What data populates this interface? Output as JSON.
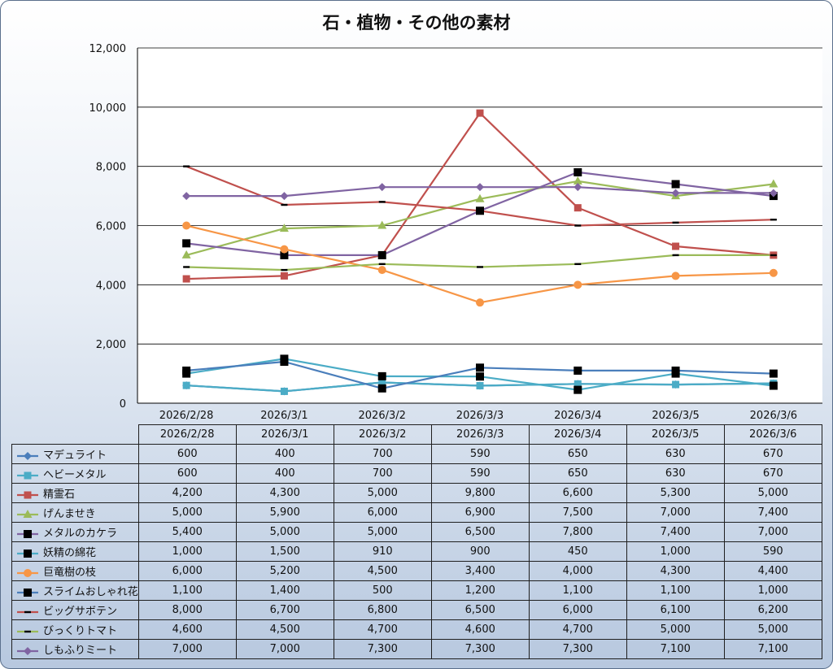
{
  "chart_data": {
    "type": "line",
    "title": "石・植物・その他の素材",
    "categories": [
      "2026/2/28",
      "2026/3/1",
      "2026/3/2",
      "2026/3/3",
      "2026/3/4",
      "2026/3/5",
      "2026/3/6"
    ],
    "ylim": [
      0,
      12000
    ],
    "yticks": [
      "0",
      "2,000",
      "4,000",
      "6,000",
      "8,000",
      "10,000",
      "12,000"
    ],
    "grid": true,
    "legend": "data-table",
    "series": [
      {
        "name": "マデュライト",
        "color": "#4a7ebb",
        "marker": "diamond",
        "values": [
          600,
          400,
          700,
          590,
          650,
          630,
          670
        ],
        "labels": [
          "600",
          "400",
          "700",
          "590",
          "650",
          "630",
          "670"
        ]
      },
      {
        "name": "ヘビーメタル",
        "color": "#4bacc6",
        "marker": "square",
        "values": [
          600,
          400,
          700,
          590,
          650,
          630,
          670
        ],
        "labels": [
          "600",
          "400",
          "700",
          "590",
          "650",
          "630",
          "670"
        ]
      },
      {
        "name": "精霊石",
        "color": "#c0504d",
        "marker": "square",
        "values": [
          4200,
          4300,
          5000,
          9800,
          6600,
          5300,
          5000
        ],
        "labels": [
          "4,200",
          "4,300",
          "5,000",
          "9,800",
          "6,600",
          "5,300",
          "5,000"
        ]
      },
      {
        "name": "げんませき",
        "color": "#9bbb59",
        "marker": "triangle",
        "values": [
          5000,
          5900,
          6000,
          6900,
          7500,
          7000,
          7400
        ],
        "labels": [
          "5,000",
          "5,900",
          "6,000",
          "6,900",
          "7,500",
          "7,000",
          "7,400"
        ]
      },
      {
        "name": "メタルのカケラ",
        "color": "#8064a2",
        "marker": "square-black",
        "values": [
          5400,
          5000,
          5000,
          6500,
          7800,
          7400,
          7000
        ],
        "labels": [
          "5,400",
          "5,000",
          "5,000",
          "6,500",
          "7,800",
          "7,400",
          "7,000"
        ]
      },
      {
        "name": "妖精の綿花",
        "color": "#4bacc6",
        "marker": "square-black",
        "values": [
          1000,
          1500,
          910,
          900,
          450,
          1000,
          590
        ],
        "labels": [
          "1,000",
          "1,500",
          "910",
          "900",
          "450",
          "1,000",
          "590"
        ]
      },
      {
        "name": "巨竜樹の枝",
        "color": "#f79646",
        "marker": "circle",
        "values": [
          6000,
          5200,
          4500,
          3400,
          4000,
          4300,
          4400
        ],
        "labels": [
          "6,000",
          "5,200",
          "4,500",
          "3,400",
          "4,000",
          "4,300",
          "4,400"
        ]
      },
      {
        "name": "スライムおしゃれ花",
        "color": "#4a7ebb",
        "marker": "square-black",
        "values": [
          1100,
          1400,
          500,
          1200,
          1100,
          1100,
          1000
        ],
        "labels": [
          "1,100",
          "1,400",
          "500",
          "1,200",
          "1,100",
          "1,100",
          "1,000"
        ]
      },
      {
        "name": "ビッグサボテン",
        "color": "#c0504d",
        "marker": "dash",
        "values": [
          8000,
          6700,
          6800,
          6500,
          6000,
          6100,
          6200
        ],
        "labels": [
          "8,000",
          "6,700",
          "6,800",
          "6,500",
          "6,000",
          "6,100",
          "6,200"
        ]
      },
      {
        "name": "びっくりトマト",
        "color": "#9bbb59",
        "marker": "dash",
        "values": [
          4600,
          4500,
          4700,
          4600,
          4700,
          5000,
          5000
        ],
        "labels": [
          "4,600",
          "4,500",
          "4,700",
          "4,600",
          "4,700",
          "5,000",
          "5,000"
        ]
      },
      {
        "name": "しもふりミート",
        "color": "#8064a2",
        "marker": "diamond",
        "values": [
          7000,
          7000,
          7300,
          7300,
          7300,
          7100,
          7100
        ],
        "labels": [
          "7,000",
          "7,000",
          "7,300",
          "7,300",
          "7,300",
          "7,100",
          "7,100"
        ]
      }
    ]
  }
}
